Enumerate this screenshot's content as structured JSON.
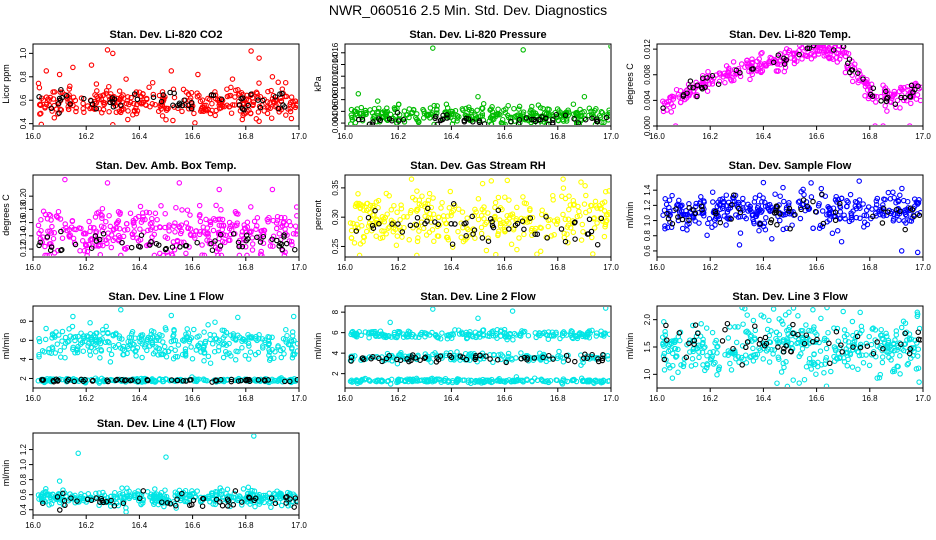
{
  "page": {
    "title": "NWR_060516  2.5 Min. Std. Dev. Diagnostics"
  },
  "chart_data": [
    {
      "type": "scatter",
      "title": "Stan. Dev. Li-820 CO2",
      "ylabel": "Licor ppm",
      "xlim": [
        16.0,
        17.0
      ],
      "ylim": [
        0.38,
        1.08
      ],
      "xticks": [
        "16.0",
        "16.2",
        "16.4",
        "16.6",
        "16.8",
        "17.0"
      ],
      "yticks": [
        "0.4",
        "0.6",
        "0.8",
        "1.0"
      ],
      "color": "#ff0000",
      "series": [
        {
          "color": "#ff0000",
          "center": 0.58,
          "spread": 0.06,
          "n": 330
        },
        {
          "color": "#000000",
          "center": 0.58,
          "spread": 0.05,
          "n": 55
        }
      ],
      "outliers": [
        [
          16.05,
          0.85
        ],
        [
          16.1,
          0.82
        ],
        [
          16.15,
          0.88
        ],
        [
          16.22,
          0.9
        ],
        [
          16.28,
          1.03
        ],
        [
          16.3,
          1.0
        ],
        [
          16.35,
          0.78
        ],
        [
          16.45,
          0.75
        ],
        [
          16.52,
          0.85
        ],
        [
          16.62,
          0.82
        ],
        [
          16.75,
          0.78
        ],
        [
          16.82,
          1.02
        ],
        [
          16.85,
          0.96
        ],
        [
          16.9,
          0.8
        ],
        [
          16.95,
          0.75
        ],
        [
          16.08,
          0.45
        ],
        [
          16.3,
          0.39
        ],
        [
          16.85,
          0.42
        ]
      ]
    },
    {
      "type": "scatter",
      "title": "Stan. Dev. Li-820 Pressure",
      "ylabel": "kPa",
      "xlim": [
        16.0,
        17.0
      ],
      "ylim": [
        0.0035,
        0.0175
      ],
      "xticks": [
        "16.0",
        "16.2",
        "16.4",
        "16.6",
        "16.8",
        "17.0"
      ],
      "yticks": [
        "0.004",
        "0.006",
        "0.008",
        "0.010",
        "0.012",
        "0.014",
        "0.016"
      ],
      "color": "#00bb00",
      "series": [
        {
          "color": "#00bb00",
          "center": 0.0053,
          "spread": 0.0008,
          "n": 330
        },
        {
          "color": "#000000",
          "center": 0.0045,
          "spread": 0.0004,
          "n": 55
        }
      ],
      "outliers": [
        [
          16.33,
          0.0168
        ],
        [
          16.67,
          0.0165
        ],
        [
          17.0,
          0.0171
        ],
        [
          16.05,
          0.009
        ],
        [
          16.5,
          0.0085
        ],
        [
          16.9,
          0.0085
        ]
      ]
    },
    {
      "type": "scatter",
      "title": "Stan. Dev. Li-820 Temp.",
      "ylabel": "degrees C",
      "xlim": [
        16.0,
        17.0
      ],
      "ylim": [
        0.0,
        0.0128
      ],
      "xticks": [
        "16.0",
        "16.2",
        "16.4",
        "16.6",
        "16.8",
        "17.0"
      ],
      "yticks": [
        "0.000",
        "0.004",
        "0.008",
        "0.012"
      ],
      "color": "#ff00ff",
      "profile": [
        [
          16.0,
          0.0025
        ],
        [
          16.1,
          0.005
        ],
        [
          16.2,
          0.007
        ],
        [
          16.3,
          0.0085
        ],
        [
          16.4,
          0.0095
        ],
        [
          16.5,
          0.0105
        ],
        [
          16.6,
          0.012
        ],
        [
          16.7,
          0.0115
        ],
        [
          16.75,
          0.008
        ],
        [
          16.8,
          0.005
        ],
        [
          16.9,
          0.0045
        ],
        [
          17.0,
          0.006
        ]
      ],
      "series": [
        {
          "color": "#ff00ff",
          "spread": 0.0009,
          "n": 330
        },
        {
          "color": "#000000",
          "spread": 0.0007,
          "n": 55
        }
      ],
      "outliers": [
        [
          16.07,
          0.0
        ],
        [
          16.82,
          0.0
        ],
        [
          16.85,
          0.0
        ],
        [
          16.95,
          0.0
        ]
      ]
    },
    {
      "type": "scatter",
      "title": "Stan. Dev. Amb. Box Temp.",
      "ylabel": "degrees C",
      "xlim": [
        16.0,
        17.0
      ],
      "ylim": [
        0.108,
        0.232
      ],
      "xticks": [
        "16.0",
        "16.2",
        "16.4",
        "16.6",
        "16.8",
        "17.0"
      ],
      "yticks": [
        "0.12",
        "0.14",
        "0.16",
        "0.18",
        "0.20"
      ],
      "color": "#ff00ff",
      "series": [
        {
          "color": "#ff00ff",
          "center": 0.145,
          "spread": 0.018,
          "n": 360
        },
        {
          "color": "#000000",
          "center": 0.128,
          "spread": 0.008,
          "n": 55
        }
      ],
      "outliers": [
        [
          16.12,
          0.225
        ],
        [
          16.28,
          0.22
        ],
        [
          16.55,
          0.22
        ],
        [
          16.7,
          0.21
        ],
        [
          16.9,
          0.21
        ]
      ]
    },
    {
      "type": "scatter",
      "title": "Stan. Dev. Gas Stream RH",
      "ylabel": "percent",
      "xlim": [
        16.0,
        17.0
      ],
      "ylim": [
        0.232,
        0.372
      ],
      "xticks": [
        "16.0",
        "16.2",
        "16.4",
        "16.6",
        "16.8",
        "17.0"
      ],
      "yticks": [
        "0.25",
        "0.30",
        "0.35"
      ],
      "color": "#ffff00",
      "series": [
        {
          "color": "#ffff00",
          "center": 0.295,
          "spread": 0.025,
          "n": 330
        },
        {
          "color": "#000000",
          "center": 0.285,
          "spread": 0.018,
          "n": 55
        }
      ],
      "outliers": [
        [
          16.25,
          0.365
        ],
        [
          16.55,
          0.362
        ],
        [
          16.82,
          0.365
        ]
      ]
    },
    {
      "type": "scatter",
      "title": "Stan. Dev. Sample Flow",
      "ylabel": "ml/min",
      "xlim": [
        16.0,
        17.0
      ],
      "ylim": [
        0.52,
        1.6
      ],
      "xticks": [
        "16.0",
        "16.2",
        "16.4",
        "16.6",
        "16.8",
        "17.0"
      ],
      "yticks": [
        "0.6",
        "0.8",
        "1.0",
        "1.2",
        "1.4"
      ],
      "color": "#0000ff",
      "series": [
        {
          "color": "#0000ff",
          "center": 1.12,
          "spread": 0.12,
          "n": 360
        },
        {
          "color": "#000000",
          "center": 1.12,
          "spread": 0.09,
          "n": 55
        }
      ],
      "outliers": [
        [
          16.31,
          0.68
        ],
        [
          16.92,
          0.6
        ],
        [
          16.98,
          0.58
        ],
        [
          16.4,
          1.5
        ],
        [
          16.76,
          1.52
        ]
      ]
    },
    {
      "type": "scatter",
      "title": "Stan. Dev. Line 1 Flow",
      "ylabel": "ml/min",
      "xlim": [
        16.0,
        17.0
      ],
      "ylim": [
        1.0,
        9.6
      ],
      "xticks": [
        "16.0",
        "16.2",
        "16.4",
        "16.6",
        "16.8",
        "17.0"
      ],
      "yticks": [
        "2",
        "4",
        "6",
        "8"
      ],
      "color": "#00e5e5",
      "series": [
        {
          "color": "#00e5e5",
          "center": 6.2,
          "spread": 0.6,
          "n": 220
        },
        {
          "color": "#00e5e5",
          "center": 4.8,
          "spread": 0.4,
          "n": 120
        },
        {
          "color": "#00e5e5",
          "center": 1.8,
          "spread": 0.1,
          "n": 230
        },
        {
          "color": "#000000",
          "center": 1.8,
          "spread": 0.08,
          "n": 55
        }
      ],
      "outliers": [
        [
          16.15,
          8.5
        ],
        [
          16.33,
          9.2
        ],
        [
          16.52,
          8.6
        ],
        [
          16.77,
          8.4
        ],
        [
          16.98,
          8.5
        ]
      ]
    },
    {
      "type": "scatter",
      "title": "Stan. Dev. Line 2 Flow",
      "ylabel": "ml/min",
      "xlim": [
        16.0,
        17.0
      ],
      "ylim": [
        0.6,
        8.6
      ],
      "xticks": [
        "16.0",
        "16.2",
        "16.4",
        "16.6",
        "16.8",
        "17.0"
      ],
      "yticks": [
        "2",
        "4",
        "6",
        "8"
      ],
      "color": "#00e5e5",
      "series": [
        {
          "color": "#00e5e5",
          "center": 5.8,
          "spread": 0.2,
          "n": 220
        },
        {
          "color": "#00e5e5",
          "center": 3.6,
          "spread": 0.25,
          "n": 160
        },
        {
          "color": "#00e5e5",
          "center": 1.3,
          "spread": 0.1,
          "n": 220
        },
        {
          "color": "#000000",
          "center": 3.5,
          "spread": 0.2,
          "n": 60
        }
      ],
      "outliers": [
        [
          16.17,
          7.0
        ],
        [
          16.33,
          8.3
        ],
        [
          16.5,
          7.4
        ],
        [
          16.63,
          8.1
        ],
        [
          16.98,
          8.4
        ]
      ]
    },
    {
      "type": "scatter",
      "title": "Stan. Dev. Line 3 Flow",
      "ylabel": "ml/min",
      "xlim": [
        16.0,
        17.0
      ],
      "ylim": [
        0.75,
        2.25
      ],
      "xticks": [
        "16.0",
        "16.2",
        "16.4",
        "16.6",
        "16.8",
        "17.0"
      ],
      "yticks": [
        "1.0",
        "1.5",
        "2.0"
      ],
      "color": "#00e5e5",
      "series": [
        {
          "color": "#00e5e5",
          "center": 1.5,
          "spread": 0.28,
          "n": 420
        },
        {
          "color": "#000000",
          "center": 1.55,
          "spread": 0.18,
          "n": 55
        }
      ],
      "outliers": [
        [
          16.33,
          2.2
        ],
        [
          16.7,
          2.15
        ],
        [
          16.98,
          2.1
        ]
      ]
    },
    {
      "type": "scatter",
      "title": "Stan. Dev. Line 4 (LT) Flow",
      "ylabel": "ml/min",
      "xlim": [
        16.0,
        17.0
      ],
      "ylim": [
        0.33,
        1.42
      ],
      "xticks": [
        "16.0",
        "16.2",
        "16.4",
        "16.6",
        "16.8",
        "17.0"
      ],
      "yticks": [
        "0.4",
        "0.6",
        "0.8",
        "1.0",
        "1.2"
      ],
      "color": "#00e5e5",
      "series": [
        {
          "color": "#00e5e5",
          "center": 0.56,
          "spread": 0.05,
          "n": 360
        },
        {
          "color": "#000000",
          "center": 0.52,
          "spread": 0.05,
          "n": 55
        }
      ],
      "outliers": [
        [
          16.17,
          1.15
        ],
        [
          16.5,
          1.1
        ],
        [
          16.83,
          1.38
        ],
        [
          16.1,
          0.78
        ],
        [
          16.35,
          0.37
        ]
      ]
    }
  ]
}
